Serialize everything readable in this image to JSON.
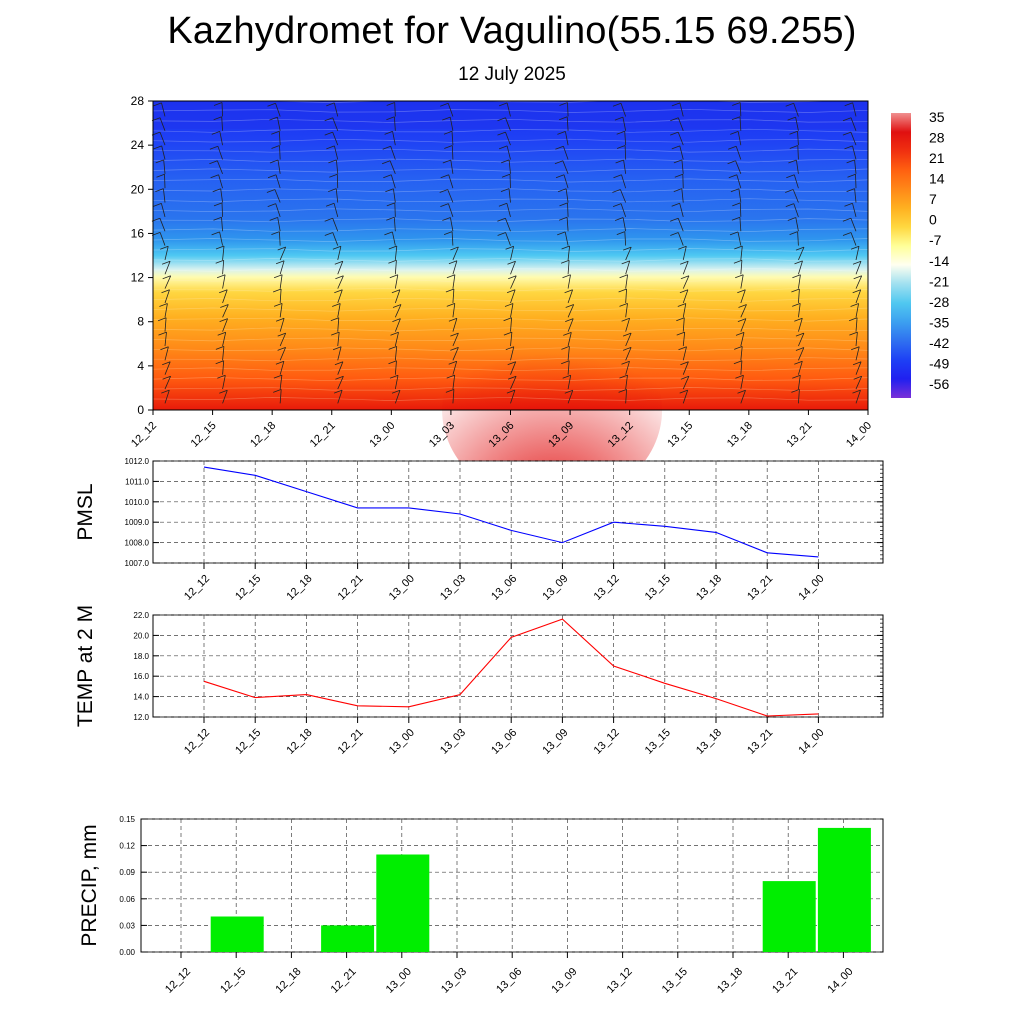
{
  "header": {
    "title": "Kazhydromet for Vagulino(55.15 69.255)",
    "subtitle": "12 July 2025"
  },
  "colors": {
    "pmsl_line": "#0000ff",
    "temp_line": "#ff0000",
    "precip_bar": "#00ee00",
    "colorbar": [
      "#7a30d8",
      "#2020f0",
      "#1e40f5",
      "#2f70f0",
      "#3ca0f0",
      "#50c8f0",
      "#a0e0f0",
      "#fffff0",
      "#ffff99",
      "#ffd840",
      "#ffb020",
      "#ff8818",
      "#ff6010",
      "#f03010",
      "#e01010",
      "#f09090"
    ]
  },
  "chart_data": [
    {
      "id": "upper-air-cross-section",
      "type": "heatmap",
      "title": "Kazhydromet for Vagulino(55.15 69.255)",
      "subtitle": "12 July 2025",
      "x_tick_labels": [
        "12_12",
        "12_15",
        "12_18",
        "12_21",
        "13_00",
        "13_03",
        "13_06",
        "13_09",
        "13_12",
        "13_15",
        "13_18",
        "13_21",
        "14_00"
      ],
      "y_ticks": [
        0,
        4,
        8,
        12,
        16,
        20,
        24,
        28
      ],
      "ylim": [
        0,
        28
      ],
      "colorbar_labels": [
        "35",
        "28",
        "21",
        "14",
        "7",
        "0",
        "-7",
        "-14",
        "-21",
        "-28",
        "-35",
        "-42",
        "-49",
        "-56"
      ],
      "freezing_level": 12.5,
      "surface_temp_peak_x": "13_09",
      "has_wind_barbs": true
    },
    {
      "id": "pmsl",
      "type": "line",
      "ylabel": "PMSL",
      "x": [
        "12_12",
        "12_15",
        "12_18",
        "12_21",
        "13_00",
        "13_03",
        "13_06",
        "13_09",
        "13_12",
        "13_15",
        "13_18",
        "13_21",
        "14_00"
      ],
      "values": [
        1011.7,
        1011.3,
        1010.5,
        1009.7,
        1009.7,
        1009.4,
        1008.6,
        1008.0,
        1009.0,
        1008.8,
        1008.5,
        1007.5,
        1007.3
      ],
      "y_ticks": [
        "1007.0",
        "1008.0",
        "1009.0",
        "1010.0",
        "1011.0",
        "1012.0"
      ],
      "ylim": [
        1007.0,
        1012.0
      ],
      "grid": true
    },
    {
      "id": "temp-2m",
      "type": "line",
      "ylabel": "TEMP at 2 M",
      "x": [
        "12_12",
        "12_15",
        "12_18",
        "12_21",
        "13_00",
        "13_03",
        "13_06",
        "13_09",
        "13_12",
        "13_15",
        "13_18",
        "13_21",
        "14_00"
      ],
      "values": [
        15.5,
        13.9,
        14.2,
        13.1,
        13.0,
        14.2,
        19.8,
        21.6,
        17.0,
        15.3,
        13.8,
        12.1,
        12.3
      ],
      "y_ticks": [
        "12.0",
        "14.0",
        "16.0",
        "18.0",
        "20.0",
        "22.0"
      ],
      "ylim": [
        12.0,
        22.0
      ],
      "grid": true
    },
    {
      "id": "precip",
      "type": "bar",
      "ylabel": "PRECIP, mm",
      "categories": [
        "12_12",
        "12_15",
        "12_18",
        "12_21",
        "13_00",
        "13_03",
        "13_06",
        "13_09",
        "13_12",
        "13_15",
        "13_18",
        "13_21",
        "14_00"
      ],
      "values": [
        0,
        0.04,
        0,
        0.03,
        0.11,
        0,
        0,
        0,
        0,
        0,
        0,
        0.08,
        0.14
      ],
      "y_ticks": [
        "0.00",
        "0.03",
        "0.06",
        "0.09",
        "0.12",
        "0.15"
      ],
      "ylim": [
        0,
        0.15
      ],
      "grid": true
    }
  ]
}
